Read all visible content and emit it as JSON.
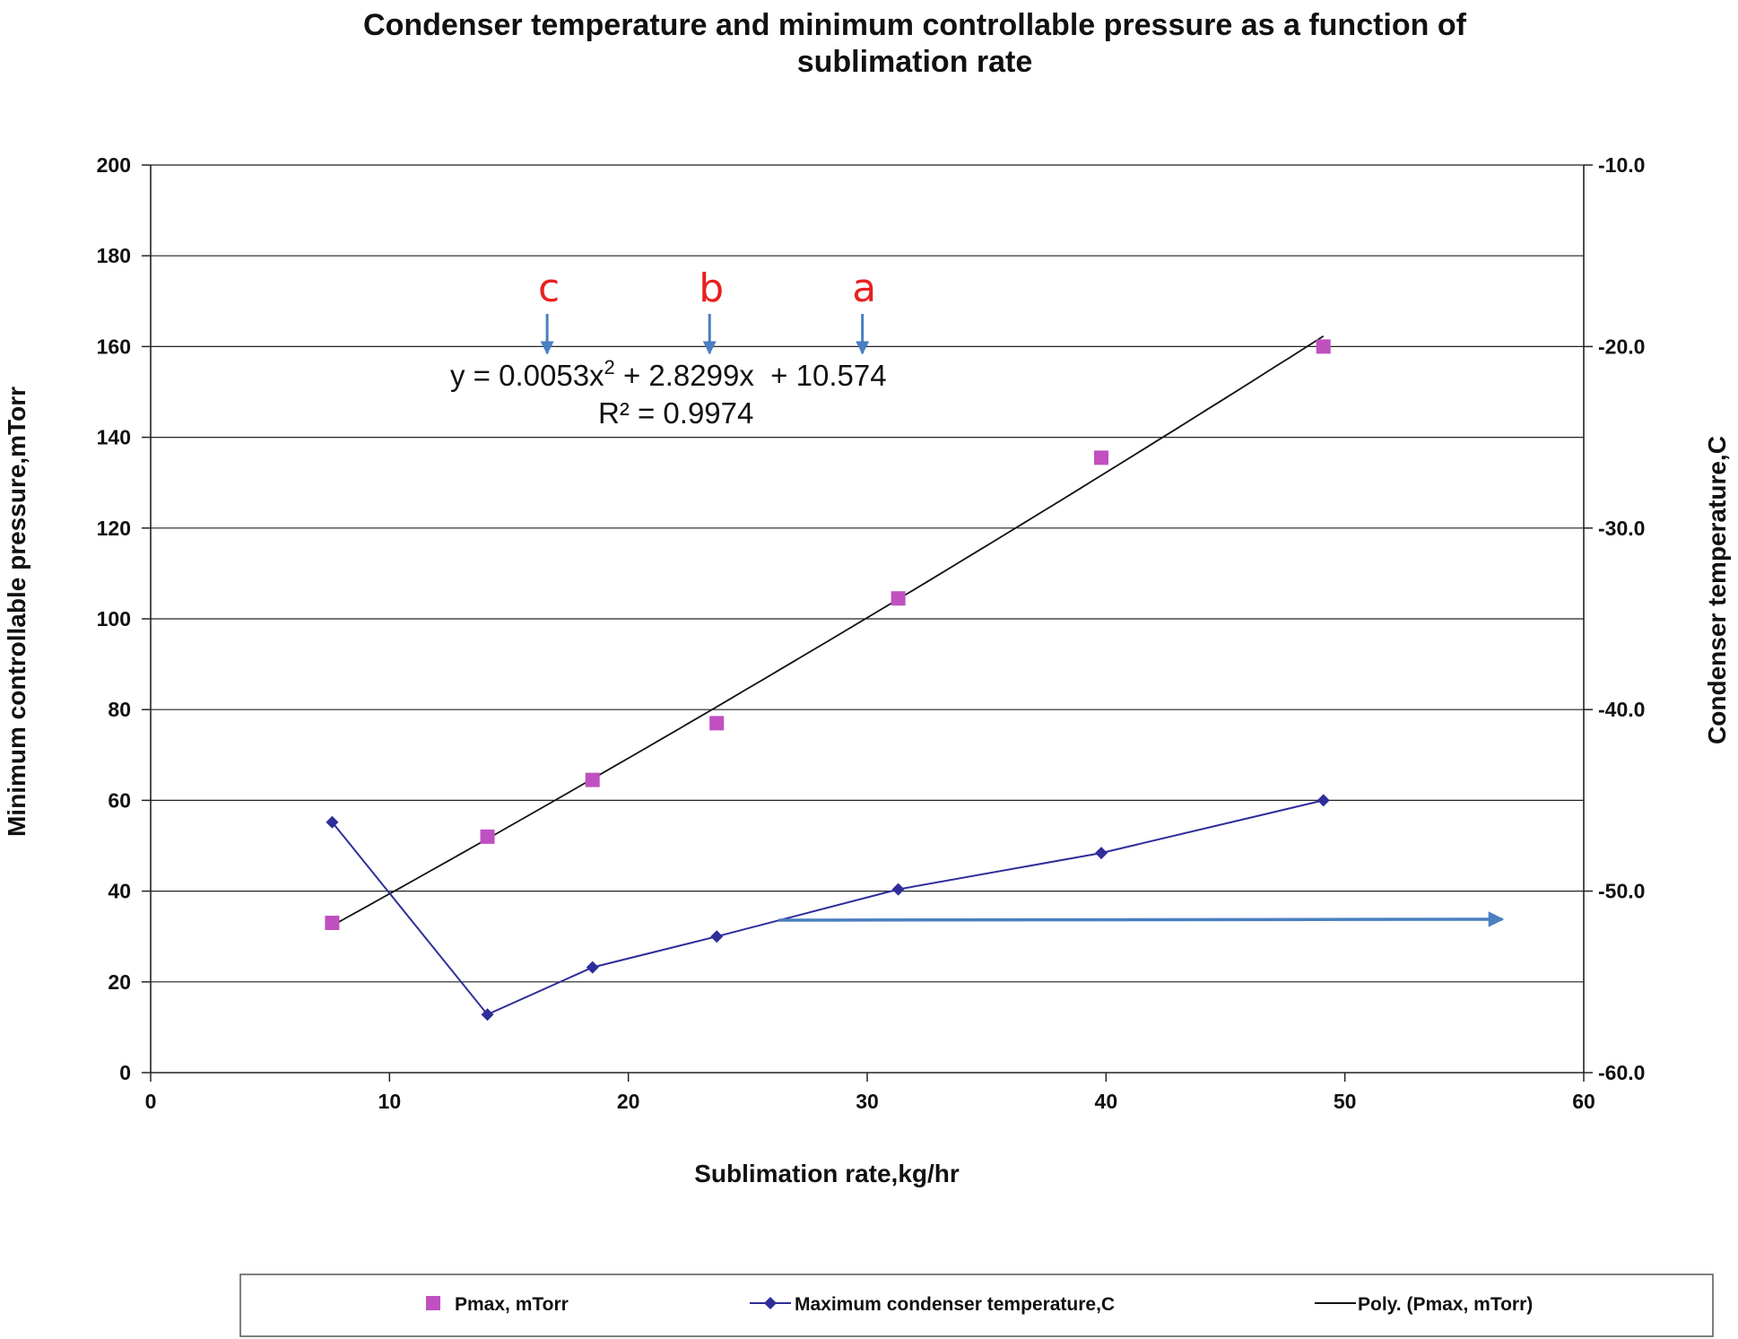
{
  "chart_data": {
    "type": "scatter",
    "title_line1": "Condenser temperature and minimum controllable pressure as a function of",
    "title_line2": "sublimation rate",
    "xlabel": "Sublimation rate,kg/hr",
    "ylabel_left": "Minimum controllable pressure,mTorr",
    "ylabel_right": "Condenser temperature,C",
    "xlim": [
      0,
      60
    ],
    "ylim_left": [
      0,
      200
    ],
    "ylim_right": [
      -60,
      -10
    ],
    "x_ticks": [
      "0",
      "10",
      "20",
      "30",
      "40",
      "50",
      "60"
    ],
    "y_left_ticks": [
      "0",
      "20",
      "40",
      "60",
      "80",
      "100",
      "120",
      "140",
      "160",
      "180",
      "200"
    ],
    "y_right_ticks": [
      "-60.0",
      "-50.0",
      "-40.0",
      "-30.0",
      "-20.0",
      "-10.0"
    ],
    "grid": "horizontal",
    "legend_position": "bottom",
    "series": [
      {
        "name": "Pmax, mTorr",
        "kind": "scatter",
        "marker": "square",
        "axis": "left",
        "color": "#c050c0",
        "points": [
          [
            7.6,
            33
          ],
          [
            14.1,
            52
          ],
          [
            18.5,
            64.5
          ],
          [
            23.7,
            77
          ],
          [
            31.3,
            104.5
          ],
          [
            39.8,
            135.5
          ],
          [
            49.1,
            160
          ]
        ]
      },
      {
        "name": "Maximum condenser temperature,C",
        "kind": "line",
        "marker": "diamond",
        "axis": "right",
        "color": "#2e2d9a",
        "points": [
          [
            7.6,
            -46.2
          ],
          [
            14.1,
            -56.8
          ],
          [
            18.5,
            -54.2
          ],
          [
            23.7,
            -52.5
          ],
          [
            31.3,
            -49.9
          ],
          [
            39.8,
            -47.9
          ],
          [
            49.1,
            -45
          ]
        ]
      },
      {
        "name": "Poly. (Pmax, mTorr)",
        "kind": "trendline",
        "axis": "left",
        "color": "#111111",
        "coefficients": [
          0.0053,
          2.8299,
          10.574
        ],
        "x_range": [
          7.6,
          49.1
        ]
      }
    ],
    "annotations": {
      "equation": "y = 0.0053x",
      "equation_exp": "2",
      "equation_rest": " + 2.8299x  + 10.574",
      "r_squared": "R² = 0.9974",
      "letters": [
        {
          "text": "c",
          "x": 16.6
        },
        {
          "text": "b",
          "x": 23.4
        },
        {
          "text": "a",
          "x": 29.8
        }
      ],
      "arrow_color": "#4a7fc1",
      "letter_color": "#e8211f",
      "horizontal_arrow": {
        "x_start": 26.3,
        "x_end": 56.6,
        "y_start": 33.6,
        "y_end": 33.8
      }
    }
  }
}
